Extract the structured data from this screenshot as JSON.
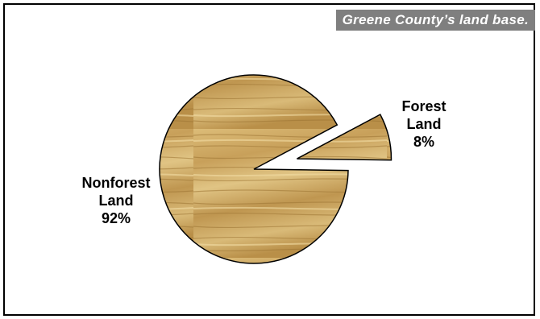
{
  "header": {
    "title": "Greene County’s land base."
  },
  "chart_data": {
    "type": "pie",
    "title": "Greene County’s land base.",
    "slices": [
      {
        "name": "Forest Land",
        "value": 8,
        "label_lines": [
          "Forest",
          "Land",
          "8%"
        ],
        "exploded": true
      },
      {
        "name": "Nonforest Land",
        "value": 92,
        "label_lines": [
          "Nonforest",
          "Land",
          "92%"
        ],
        "exploded": false
      }
    ],
    "start_angle_deg": 90,
    "direction": "clockwise",
    "fill": "wood-grain",
    "colors": {
      "wood_light": "#e2c483",
      "wood_mid": "#c9a25a",
      "wood_dark": "#a27a33",
      "stroke": "#000000"
    },
    "legend": "none"
  }
}
